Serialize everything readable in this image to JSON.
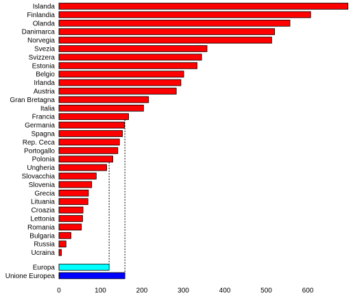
{
  "chart_data": {
    "type": "bar",
    "orientation": "horizontal",
    "title": "",
    "xlabel": "",
    "ylabel": "",
    "xlim": [
      0,
      700
    ],
    "xticks": [
      0,
      100,
      200,
      300,
      400,
      500,
      600
    ],
    "grid": false,
    "legend": "none",
    "colors": {
      "countries": "#ff0000",
      "Europa": "#00ffff",
      "Unione Europea": "#0000ff",
      "bar_outline": "#000000"
    },
    "categories": [
      "Islanda",
      "Finlandia",
      "Olanda",
      "Danimarca",
      "Norvegia",
      "Svezia",
      "Svizzera",
      "Estonia",
      "Belgio",
      "Irlanda",
      "Austria",
      "Gran Bretagna",
      "Italia",
      "Francia",
      "Germania",
      "Spagna",
      "Rep. Ceca",
      "Portogallo",
      "Polonia",
      "Ungheria",
      "Slovacchia",
      "Slovenia",
      "Grecia",
      "Lituania",
      "Croazia",
      "Lettonia",
      "Romania",
      "Bulgaria",
      "Russia",
      "Ucraina",
      "Europa",
      "Unione Europea"
    ],
    "values": [
      697,
      607,
      557,
      520,
      513,
      357,
      344,
      333,
      301,
      294,
      283,
      216,
      204,
      168,
      158,
      153,
      146,
      142,
      130,
      115,
      90,
      79,
      71,
      70,
      58,
      57,
      54,
      29,
      17,
      6,
      121,
      159
    ],
    "reference_lines": [
      {
        "from": "Europa",
        "value": 121,
        "style": "dashed"
      },
      {
        "from": "Unione Europea",
        "value": 159,
        "style": "dashed"
      }
    ]
  }
}
